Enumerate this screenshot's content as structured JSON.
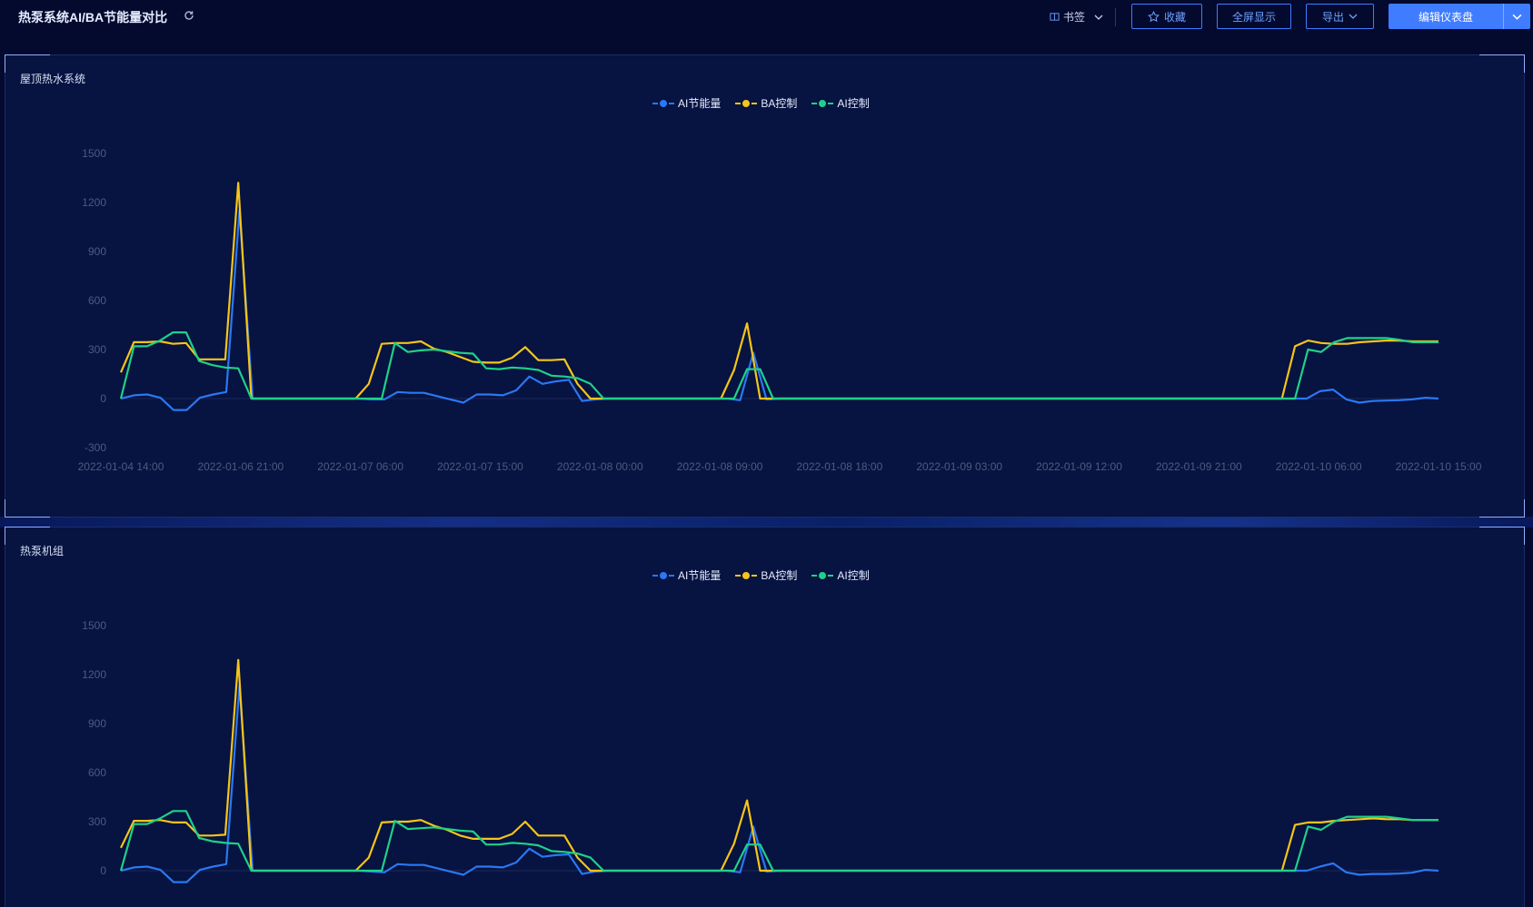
{
  "header": {
    "title": "热泵系统AI/BA节能量对比",
    "bookmark_label": "书签",
    "favorite_label": "收藏",
    "fullscreen_label": "全屏显示",
    "export_label": "导出",
    "edit_label": "编辑仪表盘"
  },
  "colors": {
    "ai_saving": "#2a78f2",
    "ba_control": "#f5c518",
    "ai_control": "#1ed18a",
    "primary": "#3f7cff"
  },
  "chart_data": [
    {
      "type": "line",
      "title": "屋顶热水系统",
      "legend": [
        "AI节能量",
        "BA控制",
        "AI控制"
      ],
      "legend_position": "top-center",
      "grid": false,
      "ylim": [
        -300,
        1500
      ],
      "y_ticks": [
        "1500",
        "1200",
        "900",
        "600",
        "300",
        "0",
        "-300"
      ],
      "x_ticks": [
        "2022-01-04 14:00",
        "2022-01-06 21:00",
        "2022-01-07 06:00",
        "2022-01-07 15:00",
        "2022-01-08 00:00",
        "2022-01-08 09:00",
        "2022-01-08 18:00",
        "2022-01-09 03:00",
        "2022-01-09 12:00",
        "2022-01-09 21:00",
        "2022-01-10 06:00",
        "2022-01-10 15:00"
      ],
      "series": [
        {
          "name": "AI节能量",
          "color": "#2a78f2",
          "values": [
            0,
            20,
            25,
            5,
            -70,
            -70,
            5,
            25,
            40,
            1150,
            0,
            0,
            0,
            0,
            0,
            0,
            0,
            0,
            0,
            -5,
            -5,
            40,
            35,
            35,
            15,
            -5,
            -25,
            25,
            25,
            20,
            50,
            135,
            90,
            105,
            115,
            -15,
            -5,
            0,
            0,
            0,
            0,
            0,
            0,
            0,
            0,
            0,
            0,
            -10,
            280,
            -5,
            0,
            0,
            0,
            0,
            0,
            0,
            0,
            0,
            0,
            0,
            0,
            0,
            0,
            0,
            0,
            0,
            0,
            0,
            0,
            0,
            0,
            0,
            0,
            0,
            0,
            0,
            0,
            0,
            0,
            0,
            0,
            0,
            0,
            0,
            0,
            0,
            0,
            0,
            0,
            0,
            0,
            45,
            55,
            -5,
            -25,
            -15,
            -12,
            -10,
            -5,
            5,
            0
          ]
        },
        {
          "name": "BA控制",
          "color": "#f5c518",
          "values": [
            160,
            345,
            345,
            350,
            335,
            340,
            240,
            240,
            240,
            1320,
            0,
            0,
            0,
            0,
            0,
            0,
            0,
            0,
            0,
            90,
            335,
            340,
            340,
            350,
            305,
            285,
            255,
            225,
            220,
            220,
            250,
            315,
            235,
            235,
            240,
            90,
            0,
            0,
            0,
            0,
            0,
            0,
            0,
            0,
            0,
            0,
            0,
            175,
            460,
            0,
            0,
            0,
            0,
            0,
            0,
            0,
            0,
            0,
            0,
            0,
            0,
            0,
            0,
            0,
            0,
            0,
            0,
            0,
            0,
            0,
            0,
            0,
            0,
            0,
            0,
            0,
            0,
            0,
            0,
            0,
            0,
            0,
            0,
            0,
            0,
            0,
            0,
            0,
            0,
            0,
            320,
            355,
            340,
            335,
            335,
            345,
            350,
            355,
            355,
            350,
            350,
            350
          ]
        },
        {
          "name": "AI控制",
          "color": "#1ed18a",
          "values": [
            0,
            320,
            320,
            355,
            405,
            405,
            230,
            205,
            190,
            185,
            0,
            0,
            0,
            0,
            0,
            0,
            0,
            0,
            0,
            0,
            0,
            340,
            285,
            295,
            300,
            290,
            280,
            275,
            185,
            180,
            190,
            185,
            175,
            140,
            135,
            125,
            90,
            0,
            0,
            0,
            0,
            0,
            0,
            0,
            0,
            0,
            0,
            0,
            180,
            180,
            0,
            0,
            0,
            0,
            0,
            0,
            0,
            0,
            0,
            0,
            0,
            0,
            0,
            0,
            0,
            0,
            0,
            0,
            0,
            0,
            0,
            0,
            0,
            0,
            0,
            0,
            0,
            0,
            0,
            0,
            0,
            0,
            0,
            0,
            0,
            0,
            0,
            0,
            0,
            0,
            0,
            300,
            285,
            345,
            370,
            370,
            370,
            370,
            360,
            345,
            345,
            345
          ]
        }
      ]
    },
    {
      "type": "line",
      "title": "热泵机组",
      "legend": [
        "AI节能量",
        "BA控制",
        "AI控制"
      ],
      "legend_position": "top-center",
      "grid": false,
      "ylim": [
        -300,
        1500
      ],
      "y_ticks": [
        "1500",
        "1200",
        "900",
        "600",
        "300",
        "0"
      ],
      "series": [
        {
          "name": "AI节能量",
          "color": "#2a78f2",
          "values": [
            0,
            20,
            25,
            5,
            -70,
            -70,
            5,
            25,
            40,
            1130,
            0,
            0,
            0,
            0,
            0,
            0,
            0,
            0,
            0,
            -5,
            -10,
            40,
            35,
            35,
            15,
            -5,
            -25,
            25,
            25,
            20,
            50,
            135,
            85,
            95,
            100,
            -20,
            -5,
            0,
            0,
            0,
            0,
            0,
            0,
            0,
            0,
            0,
            0,
            -10,
            270,
            -5,
            0,
            0,
            0,
            0,
            0,
            0,
            0,
            0,
            0,
            0,
            0,
            0,
            0,
            0,
            0,
            0,
            0,
            0,
            0,
            0,
            0,
            0,
            0,
            0,
            0,
            0,
            0,
            0,
            0,
            0,
            0,
            0,
            0,
            0,
            0,
            0,
            0,
            0,
            0,
            0,
            0,
            25,
            45,
            -10,
            -25,
            -20,
            -20,
            -18,
            -12,
            5,
            0
          ]
        },
        {
          "name": "BA控制",
          "color": "#f5c518",
          "values": [
            140,
            305,
            305,
            310,
            295,
            295,
            215,
            215,
            220,
            1290,
            0,
            0,
            0,
            0,
            0,
            0,
            0,
            0,
            0,
            80,
            295,
            300,
            300,
            310,
            275,
            250,
            215,
            195,
            195,
            195,
            225,
            300,
            215,
            215,
            215,
            80,
            0,
            0,
            0,
            0,
            0,
            0,
            0,
            0,
            0,
            0,
            0,
            165,
            430,
            0,
            0,
            0,
            0,
            0,
            0,
            0,
            0,
            0,
            0,
            0,
            0,
            0,
            0,
            0,
            0,
            0,
            0,
            0,
            0,
            0,
            0,
            0,
            0,
            0,
            0,
            0,
            0,
            0,
            0,
            0,
            0,
            0,
            0,
            0,
            0,
            0,
            0,
            0,
            0,
            0,
            280,
            295,
            295,
            305,
            310,
            315,
            320,
            315,
            315,
            310,
            310,
            310
          ]
        },
        {
          "name": "AI控制",
          "color": "#1ed18a",
          "values": [
            0,
            285,
            285,
            320,
            365,
            365,
            200,
            180,
            170,
            165,
            0,
            0,
            0,
            0,
            0,
            0,
            0,
            0,
            0,
            0,
            0,
            305,
            255,
            260,
            265,
            255,
            245,
            240,
            160,
            160,
            170,
            165,
            155,
            120,
            115,
            105,
            80,
            0,
            0,
            0,
            0,
            0,
            0,
            0,
            0,
            0,
            0,
            0,
            160,
            160,
            0,
            0,
            0,
            0,
            0,
            0,
            0,
            0,
            0,
            0,
            0,
            0,
            0,
            0,
            0,
            0,
            0,
            0,
            0,
            0,
            0,
            0,
            0,
            0,
            0,
            0,
            0,
            0,
            0,
            0,
            0,
            0,
            0,
            0,
            0,
            0,
            0,
            0,
            0,
            0,
            0,
            270,
            250,
            300,
            330,
            330,
            330,
            330,
            320,
            310,
            310,
            310
          ]
        }
      ]
    }
  ]
}
